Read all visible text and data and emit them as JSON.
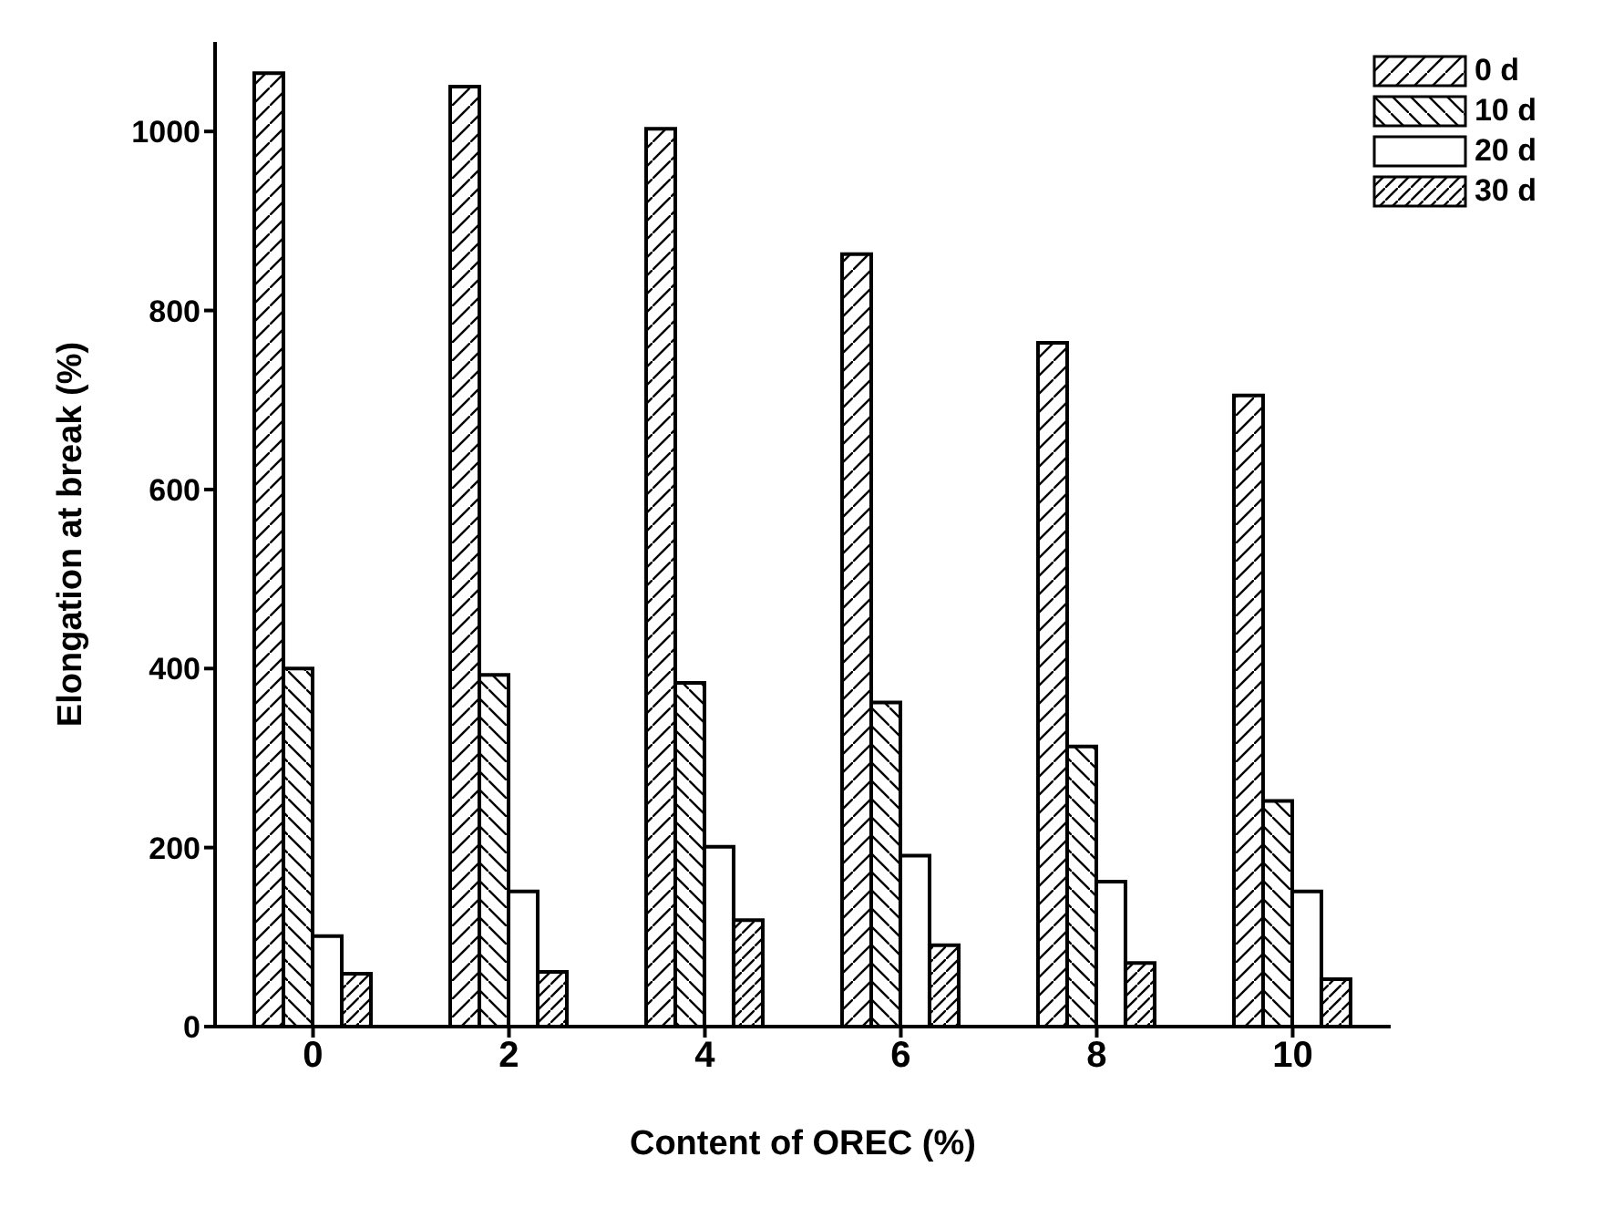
{
  "chart_data": {
    "type": "bar",
    "xlabel": "Content of OREC (%)",
    "ylabel": "Elongation at break (%)",
    "categories": [
      "0",
      "2",
      "4",
      "6",
      "8",
      "10"
    ],
    "series": [
      {
        "name": "0 d",
        "color": "#000000",
        "values": [
          1065,
          1050,
          1003,
          863,
          764,
          705
        ]
      },
      {
        "name": "10 d",
        "color": "#000000",
        "values": [
          400,
          393,
          384,
          362,
          313,
          252
        ]
      },
      {
        "name": "20 d",
        "color": "#ffffff",
        "values": [
          101,
          151,
          201,
          191,
          162,
          151
        ]
      },
      {
        "name": "30 d",
        "color": "#000000",
        "values": [
          59,
          61,
          119,
          91,
          71,
          53
        ]
      }
    ],
    "ylim": [
      0,
      1100
    ],
    "yticks": [
      0,
      200,
      400,
      600,
      800,
      1000
    ],
    "grid": false,
    "legend": "top right"
  }
}
